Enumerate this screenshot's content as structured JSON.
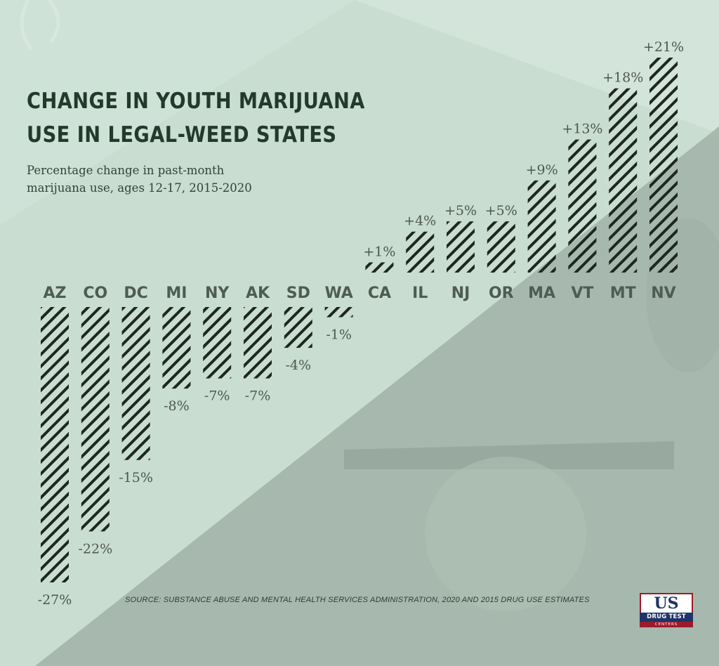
{
  "title_line1": "CHANGE IN YOUTH MARIJUANA",
  "title_line2": "USE IN LEGAL-WEED STATES",
  "subtitle_line1": "Percentage change in past-month",
  "subtitle_line2": "marijuana use, ages 12-17, 2015-2020",
  "source": "SOURCE: SUBSTANCE ABUSE AND MENTAL HEALTH SERVICES ADMINISTRATION, 2020 AND 2015 DRUG USE ESTIMATES",
  "logo": {
    "top": "US",
    "middle": "DRUG TEST",
    "bottom": "CENTERS"
  },
  "colors": {
    "background_light": "#cfe3d8",
    "background_dark": "#a6b9ad",
    "bar_hatch": "#1e2621",
    "title": "#223a2c"
  },
  "chart_data": {
    "type": "bar",
    "title": "CHANGE IN YOUTH MARIJUANA USE IN LEGAL-WEED STATES",
    "subtitle": "Percentage change in past-month marijuana use, ages 12-17, 2015-2020",
    "xlabel": "",
    "ylabel": "",
    "categories": [
      "AZ",
      "CO",
      "DC",
      "MI",
      "NY",
      "AK",
      "SD",
      "WA",
      "CA",
      "IL",
      "NJ",
      "OR",
      "MA",
      "VT",
      "MT",
      "NV"
    ],
    "values": [
      -27,
      -22,
      -15,
      -8,
      -7,
      -7,
      -4,
      -1,
      1,
      4,
      5,
      5,
      9,
      13,
      18,
      21
    ],
    "value_labels": [
      "-27%",
      "-22%",
      "-15%",
      "-8%",
      "-7%",
      "-7%",
      "-4%",
      "-1%",
      "+1%",
      "+4%",
      "+5%",
      "+5%",
      "+9%",
      "+13%",
      "+18%",
      "+21%"
    ],
    "ylim": [
      -27,
      21
    ],
    "grid": false,
    "legend": "none",
    "source": "SOURCE: SUBSTANCE ABUSE AND MENTAL HEALTH SERVICES ADMINISTRATION, 2020 AND 2015 DRUG USE ESTIMATES"
  }
}
